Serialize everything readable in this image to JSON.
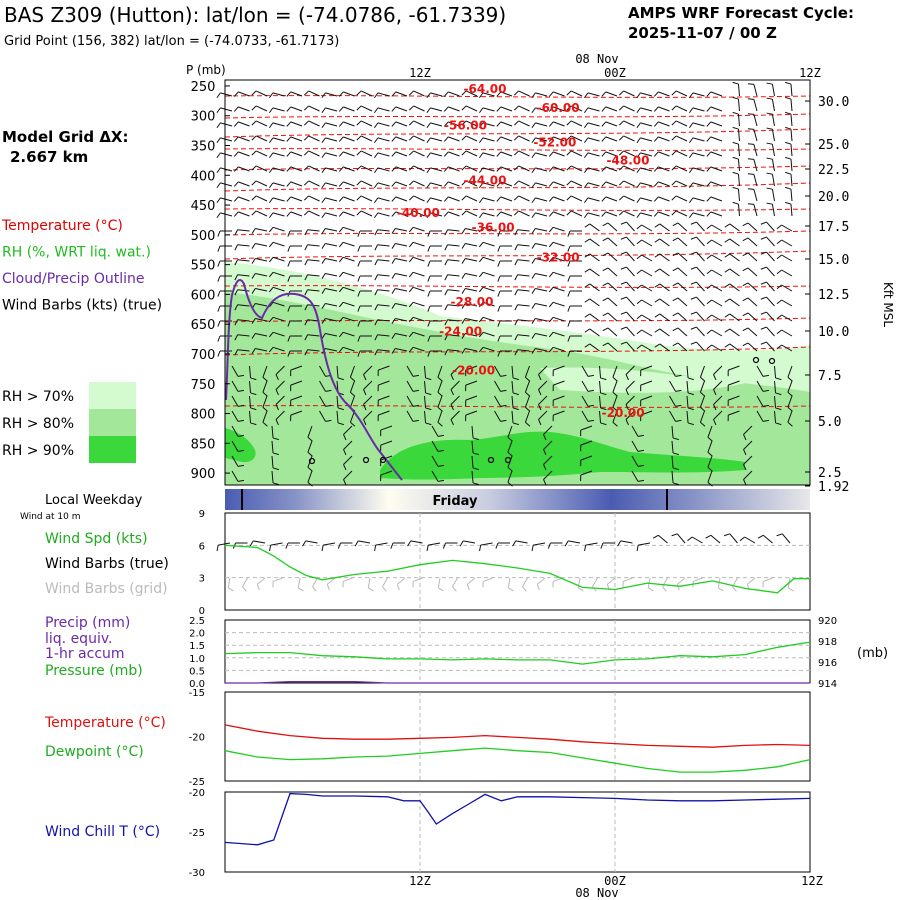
{
  "header": {
    "title": "BAS Z309 (Hutton):  lat/lon = (-74.0786, -61.7339)",
    "subtitle": "Grid Point (156, 382) lat/lon = (-74.0733, -61.7173)",
    "cycle_line1": "AMPS WRF Forecast Cycle:",
    "cycle_line2": "2025-11-07 / 00  Z"
  },
  "time_axis": {
    "top_labels": [
      "12Z",
      "00Z",
      "12Z"
    ],
    "date_label": "08 Nov",
    "bottom_labels": [
      "12Z",
      "00Z"
    ],
    "bottom_date": "08 Nov",
    "hours": [
      0,
      36
    ]
  },
  "left_panel": {
    "model_grid_label": "Model Grid ΔX:",
    "model_grid_value": "2.667 km",
    "legend_items": [
      {
        "label": "Temperature (°C)",
        "color": "#e00000"
      },
      {
        "label": "RH (%, WRT liq. wat.)",
        "color": "#22bb22"
      },
      {
        "label": "Cloud/Precip Outline",
        "color": "#6a2aa8"
      },
      {
        "label": "Wind Barbs (kts) (true)",
        "color": "#000000"
      }
    ],
    "rh_legend": [
      {
        "label": "RH > 70%",
        "color": "#d4fad0"
      },
      {
        "label": "RH > 80%",
        "color": "#a3e89a"
      },
      {
        "label": "RH > 90%",
        "color": "#3ad83a"
      }
    ]
  },
  "sounding": {
    "y_axis_title": "P (mb)",
    "pressure_levels": [
      "250",
      "300",
      "350",
      "400",
      "450",
      "500",
      "550",
      "600",
      "650",
      "700",
      "750",
      "800",
      "850",
      "900"
    ],
    "height_title": "Kft MSL",
    "height_labels": [
      "30.0",
      "25.0",
      "22.5",
      "20.0",
      "17.5",
      "15.0",
      "12.5",
      "10.0",
      "7.5",
      "5.0",
      "2.5",
      "1.92"
    ]
  },
  "chart_data": [
    {
      "type": "area",
      "title": "Time-height cross section",
      "ylabel": "P (mb)",
      "ylim": [
        900,
        250
      ],
      "isotherm_labels": [
        {
          "value": "-64.00",
          "hour": 16.0,
          "p": 255
        },
        {
          "value": "-60.00",
          "hour": 20.5,
          "p": 287
        },
        {
          "value": "-56.00",
          "hour": 14.8,
          "p": 316
        },
        {
          "value": "-52.00",
          "hour": 20.3,
          "p": 345
        },
        {
          "value": "-48.00",
          "hour": 24.8,
          "p": 375
        },
        {
          "value": "-44.00",
          "hour": 16.0,
          "p": 409
        },
        {
          "value": "-40.00",
          "hour": 11.9,
          "p": 463
        },
        {
          "value": "-36.00",
          "hour": 16.5,
          "p": 488
        },
        {
          "value": "-32.00",
          "hour": 20.5,
          "p": 538
        },
        {
          "value": "-28.00",
          "hour": 15.2,
          "p": 613
        },
        {
          "value": "-24.00",
          "hour": 14.5,
          "p": 662
        },
        {
          "value": "-20.00",
          "hour": 15.3,
          "p": 728
        },
        {
          "value": "-20.00",
          "hour": 24.5,
          "p": 799
        }
      ]
    },
    {
      "type": "line",
      "title": "Wind Spd (kts)",
      "ylim": [
        0,
        9
      ],
      "y_ticks": [
        "9",
        "6",
        "3",
        "0"
      ],
      "x": [
        0,
        1,
        2,
        3,
        4,
        5,
        6,
        8,
        10,
        12,
        14,
        16,
        18,
        20,
        22,
        24,
        26,
        28,
        30,
        32,
        34,
        35,
        36
      ],
      "series": [
        {
          "name": "Wind Spd (kts)",
          "values": [
            6.0,
            5.9,
            5.8,
            5.0,
            4.0,
            3.2,
            2.8,
            3.3,
            3.6,
            4.2,
            4.6,
            4.3,
            3.9,
            3.4,
            2.1,
            1.9,
            2.5,
            2.2,
            2.7,
            2.0,
            1.6,
            2.9,
            2.9
          ]
        }
      ]
    },
    {
      "type": "line",
      "title": "Precip (mm) / Pressure (mb)",
      "y_ticks_left": [
        "2.5",
        "2.0",
        "1.5",
        "1.0",
        "0.5",
        "0.0"
      ],
      "y_ticks_right": [
        "920",
        "918",
        "916",
        "914"
      ],
      "ylim_left": [
        0,
        2.5
      ],
      "ylim_right": [
        914,
        920
      ],
      "x": [
        0,
        2,
        4,
        6,
        8,
        10,
        12,
        14,
        16,
        18,
        20,
        22,
        24,
        26,
        28,
        30,
        32,
        34,
        36
      ],
      "series": [
        {
          "name": "Pressure (mb)",
          "values": [
            916.8,
            916.9,
            916.9,
            916.6,
            916.5,
            916.3,
            916.3,
            916.2,
            916.3,
            916.2,
            916.2,
            915.8,
            916.2,
            916.3,
            916.6,
            916.5,
            916.7,
            917.4,
            917.9
          ]
        },
        {
          "name": "Precip (mm)",
          "values": [
            0.0,
            0.0,
            0.05,
            0.05,
            0.05,
            0.0,
            0.0,
            0.0,
            0.0,
            0.0,
            0.0,
            0.0,
            0.0,
            0.0,
            0.0,
            0.0,
            0.0,
            0.0,
            0.0
          ]
        }
      ]
    },
    {
      "type": "line",
      "title": "Temperature / Dewpoint (°C)",
      "ylim": [
        -25,
        -15
      ],
      "y_ticks": [
        "-15",
        "-20",
        "-25"
      ],
      "x": [
        0,
        2,
        4,
        6,
        8,
        10,
        12,
        14,
        16,
        18,
        20,
        22,
        24,
        26,
        28,
        30,
        32,
        34,
        36
      ],
      "series": [
        {
          "name": "Temperature (°C)",
          "values": [
            -18.7,
            -19.4,
            -19.9,
            -20.2,
            -20.3,
            -20.3,
            -20.2,
            -20.1,
            -19.9,
            -20.1,
            -20.3,
            -20.6,
            -20.8,
            -21.0,
            -21.1,
            -21.2,
            -21.0,
            -20.9,
            -21.0
          ]
        },
        {
          "name": "Dewpoint (°C)",
          "values": [
            -21.6,
            -22.3,
            -22.6,
            -22.5,
            -22.3,
            -22.2,
            -21.9,
            -21.6,
            -21.3,
            -21.6,
            -21.8,
            -22.4,
            -23.0,
            -23.6,
            -24.0,
            -24.0,
            -23.8,
            -23.4,
            -22.6
          ]
        }
      ]
    },
    {
      "type": "line",
      "title": "Wind Chill T (°C)",
      "ylim": [
        -30,
        -20
      ],
      "y_ticks": [
        "-20",
        "-25",
        "-30"
      ],
      "x": [
        0,
        2,
        3,
        4,
        5,
        6,
        8,
        10,
        11,
        12,
        12.5,
        13,
        14,
        15,
        16,
        17,
        18,
        20,
        22,
        24,
        26,
        28,
        30,
        32,
        34,
        36
      ],
      "series": [
        {
          "name": "Wind Chill T (°C)",
          "values": [
            -26.3,
            -26.6,
            -26.0,
            -20.2,
            -20.3,
            -20.5,
            -20.5,
            -20.6,
            -21.1,
            -21.1,
            -22.5,
            -24.0,
            -22.7,
            -21.5,
            -20.3,
            -21.1,
            -20.6,
            -20.6,
            -20.7,
            -20.8,
            -21.0,
            -21.1,
            -21.1,
            -21.0,
            -20.9,
            -20.8
          ]
        }
      ]
    }
  ],
  "weekday_bar": {
    "label": "Friday",
    "title": "Local Weekday"
  },
  "wind10m": {
    "subtitle": "Wind at 10 m"
  },
  "panel_labels": {
    "wind_spd": "Wind Spd (kts)",
    "barbs_true": "Wind Barbs (true)",
    "barbs_grid": "Wind Barbs (grid)",
    "precip_line1": "Precip (mm)",
    "precip_line2": "liq. equiv.",
    "precip_line3": "1-hr accum",
    "pressure": "Pressure (mb)",
    "pressure_unit": "(mb)",
    "temperature": "Temperature (°C)",
    "dewpoint": "Dewpoint (°C)",
    "wind_chill": "Wind Chill T (°C)"
  },
  "colors": {
    "temperature": "#dd1111",
    "dewpoint": "#22cc22",
    "windchill": "#1111aa",
    "cloud": "#6a2aa8",
    "rh70": "#d4fad0",
    "rh80": "#a3e89a",
    "rh90": "#3ad83a",
    "barb": "#111111",
    "barb_grid": "#b8b8b8",
    "isotherm": "#ee1111"
  }
}
